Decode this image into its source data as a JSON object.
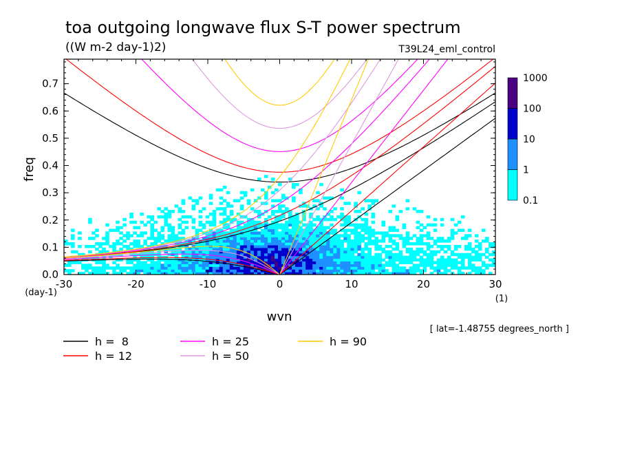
{
  "chart_data": {
    "type": "heatmap",
    "title": "toa outgoing longwave flux S-T power spectrum",
    "subtitle": "((W m-2 day-1)2)",
    "run_label": "T39L24_eml_control",
    "xlabel": "wvn",
    "ylabel": "freq",
    "x_unit": "(1)",
    "y_unit": "(day-1)",
    "xlim": [
      -30,
      30
    ],
    "ylim": [
      0,
      0.79
    ],
    "x_ticks": [
      -30,
      -20,
      -10,
      0,
      10,
      20,
      30
    ],
    "y_ticks": [
      0.0,
      0.1,
      0.2,
      0.3,
      0.4,
      0.5,
      0.6,
      0.7
    ],
    "x_tick_labels": [
      "-30",
      "-20",
      "-10",
      "0",
      "10",
      "20",
      "30"
    ],
    "y_tick_labels": [
      "0.0",
      "0.1",
      "0.2",
      "0.3",
      "0.4",
      "0.5",
      "0.6",
      "0.7"
    ],
    "color_levels": [
      0.1,
      1,
      10,
      100,
      1000
    ],
    "color_level_labels": [
      "0.1",
      "1",
      "10",
      "100",
      "1000"
    ],
    "level_colors": [
      "#00ffff",
      "#1e90ff",
      "#0000cd",
      "#4b0082"
    ],
    "footnote": "[ lat=-1.48755 degrees_north ]",
    "series": [
      {
        "name": "h =  8",
        "h": 8,
        "color": "#000000"
      },
      {
        "name": "h = 12",
        "h": 12,
        "color": "#ff0000"
      },
      {
        "name": "h = 25",
        "h": 25,
        "color": "#ff00ff"
      },
      {
        "name": "h = 50",
        "h": 50,
        "color": "#dd99dd"
      },
      {
        "name": "h = 90",
        "h": 90,
        "color": "#ffcc00"
      }
    ]
  }
}
